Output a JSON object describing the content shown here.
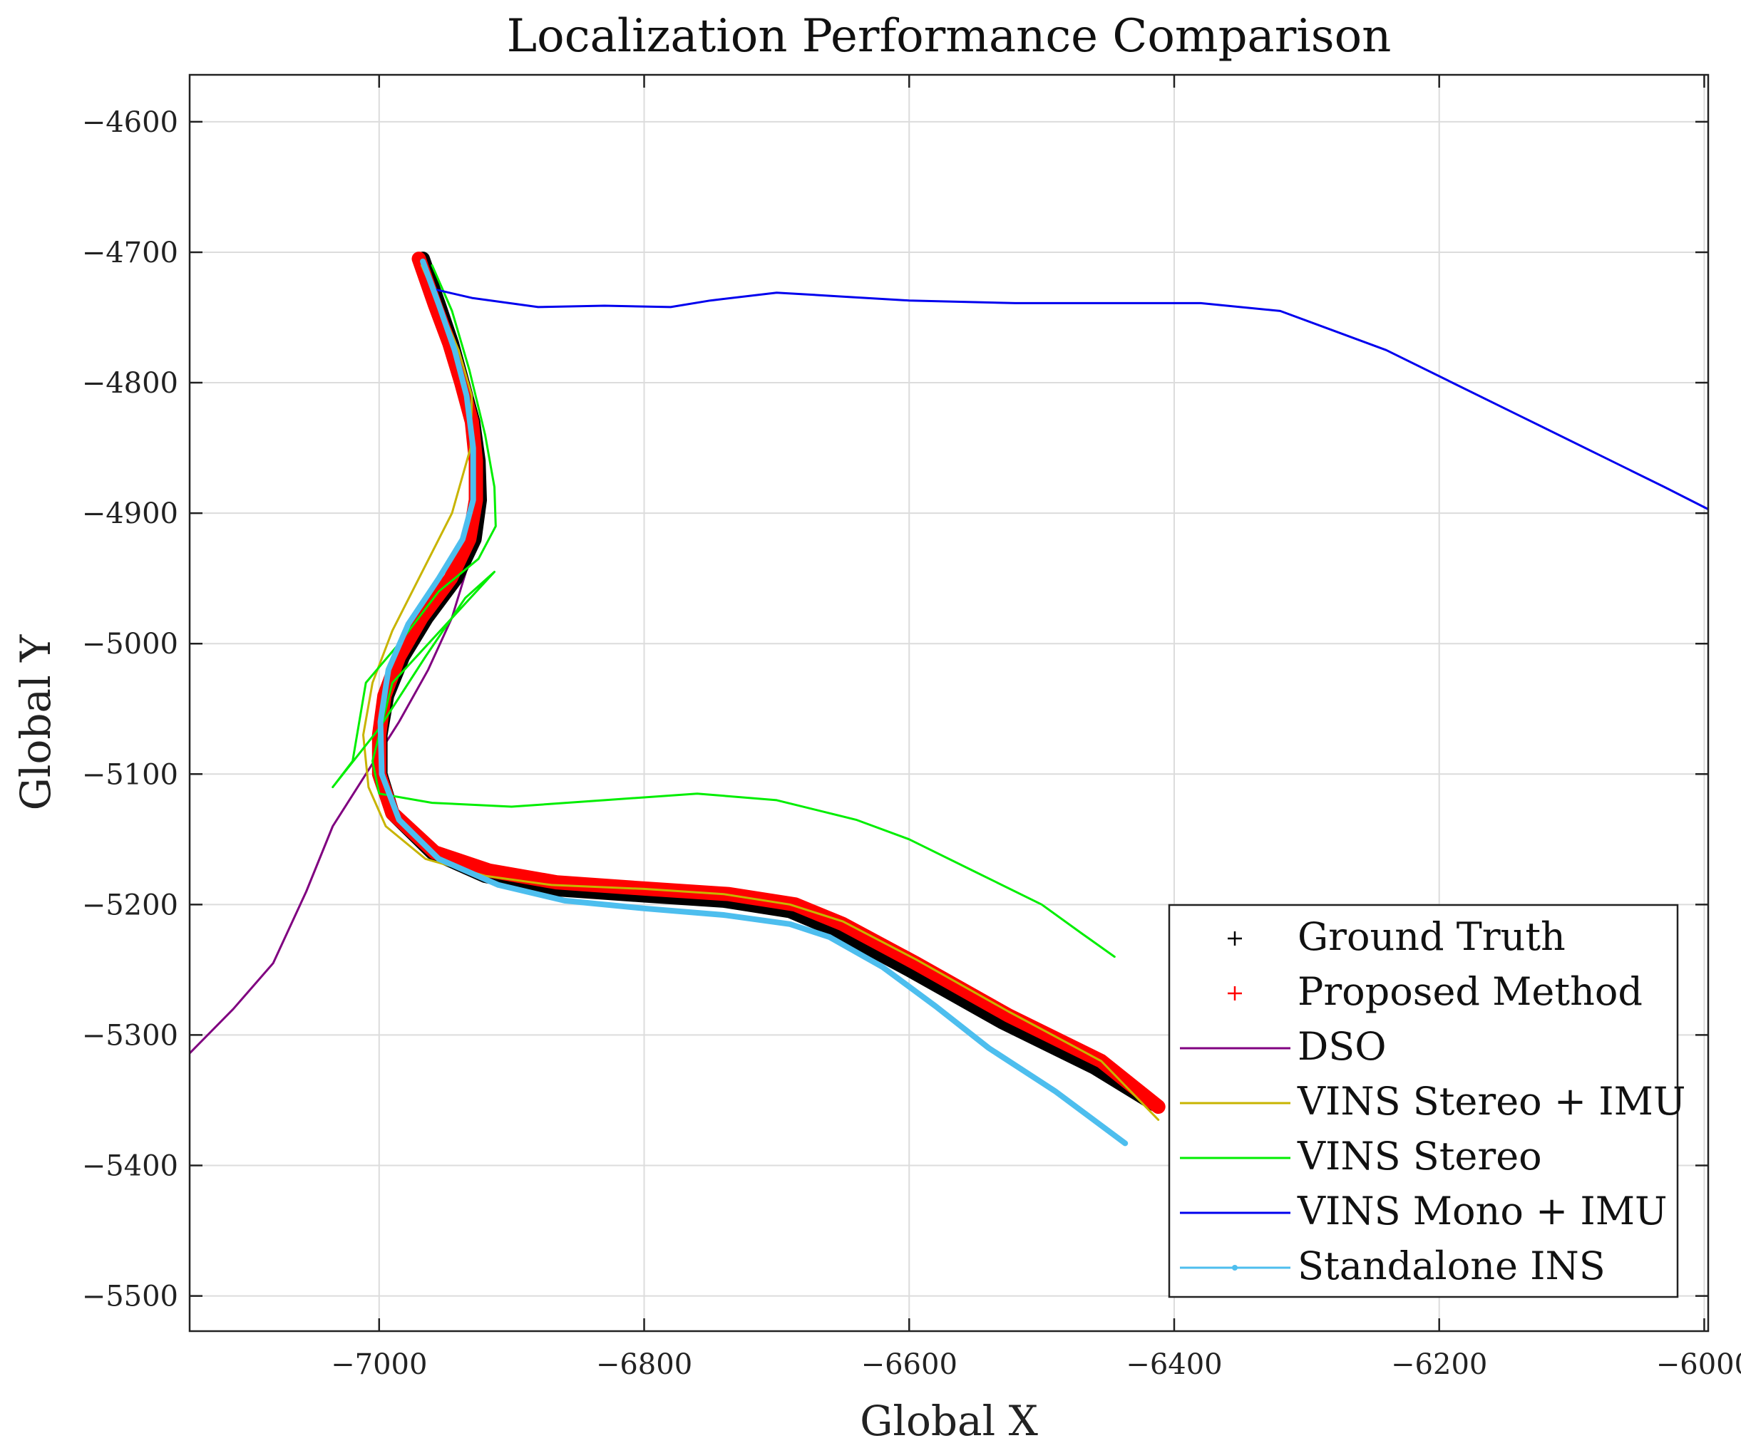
{
  "chart_data": {
    "type": "line",
    "title": "Localization Performance Comparison",
    "xlabel": "Global X",
    "ylabel": "Global Y",
    "xlim": [
      -7143,
      -5997
    ],
    "ylim": [
      -5527,
      -4564
    ],
    "xticks": [
      -7000,
      -6800,
      -6600,
      -6400,
      -6200,
      -6000
    ],
    "yticks": [
      -4600,
      -4700,
      -4800,
      -4900,
      -5000,
      -5100,
      -5200,
      -5300,
      -5400,
      -5500
    ],
    "grid": true,
    "legend_position": "bottom-right",
    "series": [
      {
        "name": "Ground Truth",
        "color": "#000000",
        "style": "plus-marker",
        "points": [
          [
            -6967,
            -4705
          ],
          [
            -6955,
            -4740
          ],
          [
            -6945,
            -4770
          ],
          [
            -6937,
            -4800
          ],
          [
            -6929,
            -4830
          ],
          [
            -6925,
            -4860
          ],
          [
            -6924,
            -4890
          ],
          [
            -6928,
            -4920
          ],
          [
            -6942,
            -4950
          ],
          [
            -6964,
            -4980
          ],
          [
            -6982,
            -5010
          ],
          [
            -6994,
            -5040
          ],
          [
            -6999,
            -5070
          ],
          [
            -6999,
            -5100
          ],
          [
            -6990,
            -5130
          ],
          [
            -6960,
            -5160
          ],
          [
            -6920,
            -5178
          ],
          [
            -6870,
            -5188
          ],
          [
            -6800,
            -5193
          ],
          [
            -6740,
            -5197
          ],
          [
            -6690,
            -5205
          ],
          [
            -6655,
            -5220
          ],
          [
            -6600,
            -5250
          ],
          [
            -6530,
            -5290
          ],
          [
            -6460,
            -5325
          ],
          [
            -6415,
            -5353
          ]
        ]
      },
      {
        "name": "Proposed Method",
        "color": "#ff0000",
        "style": "plus-marker",
        "points": [
          [
            -6970,
            -4705
          ],
          [
            -6958,
            -4740
          ],
          [
            -6947,
            -4770
          ],
          [
            -6938,
            -4800
          ],
          [
            -6930,
            -4830
          ],
          [
            -6927,
            -4860
          ],
          [
            -6927,
            -4890
          ],
          [
            -6932,
            -4920
          ],
          [
            -6946,
            -4950
          ],
          [
            -6968,
            -4980
          ],
          [
            -6985,
            -5010
          ],
          [
            -6996,
            -5040
          ],
          [
            -7000,
            -5070
          ],
          [
            -7000,
            -5100
          ],
          [
            -6990,
            -5130
          ],
          [
            -6958,
            -5160
          ],
          [
            -6917,
            -5174
          ],
          [
            -6866,
            -5183
          ],
          [
            -6796,
            -5188
          ],
          [
            -6736,
            -5192
          ],
          [
            -6686,
            -5200
          ],
          [
            -6650,
            -5215
          ],
          [
            -6595,
            -5245
          ],
          [
            -6525,
            -5285
          ],
          [
            -6455,
            -5320
          ],
          [
            -6412,
            -5355
          ]
        ]
      },
      {
        "name": "DSO",
        "color": "#800080",
        "style": "line",
        "points": [
          [
            -6963,
            -4708
          ],
          [
            -6952,
            -4740
          ],
          [
            -6941,
            -4780
          ],
          [
            -6932,
            -4820
          ],
          [
            -6928,
            -4860
          ],
          [
            -6928,
            -4900
          ],
          [
            -6933,
            -4940
          ],
          [
            -6945,
            -4980
          ],
          [
            -6963,
            -5020
          ],
          [
            -6985,
            -5060
          ],
          [
            -7010,
            -5100
          ],
          [
            -7035,
            -5140
          ],
          [
            -7055,
            -5190
          ],
          [
            -7080,
            -5245
          ],
          [
            -7110,
            -5280
          ],
          [
            -7143,
            -5314
          ]
        ]
      },
      {
        "name": "VINS Stereo + IMU",
        "color": "#c8b400",
        "style": "line",
        "points": [
          [
            -6968,
            -4710
          ],
          [
            -6955,
            -4740
          ],
          [
            -6940,
            -4775
          ],
          [
            -6930,
            -4810
          ],
          [
            -6931,
            -4850
          ],
          [
            -6945,
            -4900
          ],
          [
            -6970,
            -4950
          ],
          [
            -6990,
            -4990
          ],
          [
            -7005,
            -5030
          ],
          [
            -7012,
            -5070
          ],
          [
            -7008,
            -5110
          ],
          [
            -6995,
            -5140
          ],
          [
            -6965,
            -5165
          ],
          [
            -6920,
            -5178
          ],
          [
            -6870,
            -5185
          ],
          [
            -6800,
            -5188
          ],
          [
            -6740,
            -5192
          ],
          [
            -6690,
            -5200
          ],
          [
            -6650,
            -5213
          ],
          [
            -6595,
            -5242
          ],
          [
            -6525,
            -5282
          ],
          [
            -6455,
            -5320
          ],
          [
            -6412,
            -5365
          ]
        ]
      },
      {
        "name": "VINS Stereo",
        "color": "#00ee00",
        "style": "line",
        "points": [
          [
            -6960,
            -4710
          ],
          [
            -6945,
            -4745
          ],
          [
            -6932,
            -4790
          ],
          [
            -6920,
            -4840
          ],
          [
            -6913,
            -4880
          ],
          [
            -6912,
            -4910
          ],
          [
            -6925,
            -4935
          ],
          [
            -6955,
            -4960
          ],
          [
            -6985,
            -5000
          ],
          [
            -7010,
            -5030
          ],
          [
            -7015,
            -5060
          ],
          [
            -7020,
            -5090
          ],
          [
            -7035,
            -5110
          ],
          [
            -7000,
            -5065
          ],
          [
            -6965,
            -5010
          ],
          [
            -6935,
            -4965
          ],
          [
            -6913,
            -4945
          ],
          [
            -6990,
            -5030
          ],
          [
            -7005,
            -5090
          ],
          [
            -7000,
            -5115
          ],
          [
            -6960,
            -5122
          ],
          [
            -6900,
            -5125
          ],
          [
            -6830,
            -5120
          ],
          [
            -6760,
            -5115
          ],
          [
            -6700,
            -5120
          ],
          [
            -6640,
            -5135
          ],
          [
            -6600,
            -5150
          ],
          [
            -6550,
            -5175
          ],
          [
            -6500,
            -5200
          ],
          [
            -6470,
            -5222
          ],
          [
            -6445,
            -5240
          ]
        ]
      },
      {
        "name": "VINS Mono + IMU",
        "color": "#0000ee",
        "style": "line",
        "points": [
          [
            -6960,
            -4728
          ],
          [
            -6930,
            -4735
          ],
          [
            -6880,
            -4742
          ],
          [
            -6830,
            -4741
          ],
          [
            -6780,
            -4742
          ],
          [
            -6750,
            -4737
          ],
          [
            -6700,
            -4731
          ],
          [
            -6650,
            -4734
          ],
          [
            -6600,
            -4737
          ],
          [
            -6520,
            -4739
          ],
          [
            -6450,
            -4739
          ],
          [
            -6380,
            -4739
          ],
          [
            -6320,
            -4745
          ],
          [
            -6280,
            -4760
          ],
          [
            -6240,
            -4775
          ],
          [
            -6190,
            -4800
          ],
          [
            -6140,
            -4825
          ],
          [
            -6080,
            -4855
          ],
          [
            -6030,
            -4880
          ],
          [
            -5997,
            -4897
          ]
        ]
      },
      {
        "name": "Standalone INS",
        "color": "#4dbeee",
        "style": "line-dot",
        "points": [
          [
            -6967,
            -4707
          ],
          [
            -6955,
            -4740
          ],
          [
            -6943,
            -4775
          ],
          [
            -6934,
            -4810
          ],
          [
            -6929,
            -4850
          ],
          [
            -6929,
            -4890
          ],
          [
            -6937,
            -4920
          ],
          [
            -6955,
            -4950
          ],
          [
            -6978,
            -4985
          ],
          [
            -6993,
            -5020
          ],
          [
            -6999,
            -5060
          ],
          [
            -6998,
            -5100
          ],
          [
            -6985,
            -5135
          ],
          [
            -6955,
            -5165
          ],
          [
            -6910,
            -5185
          ],
          [
            -6860,
            -5197
          ],
          [
            -6800,
            -5203
          ],
          [
            -6740,
            -5208
          ],
          [
            -6690,
            -5215
          ],
          [
            -6660,
            -5225
          ],
          [
            -6620,
            -5248
          ],
          [
            -6580,
            -5278
          ],
          [
            -6540,
            -5310
          ],
          [
            -6490,
            -5343
          ],
          [
            -6437,
            -5383
          ]
        ]
      }
    ]
  }
}
